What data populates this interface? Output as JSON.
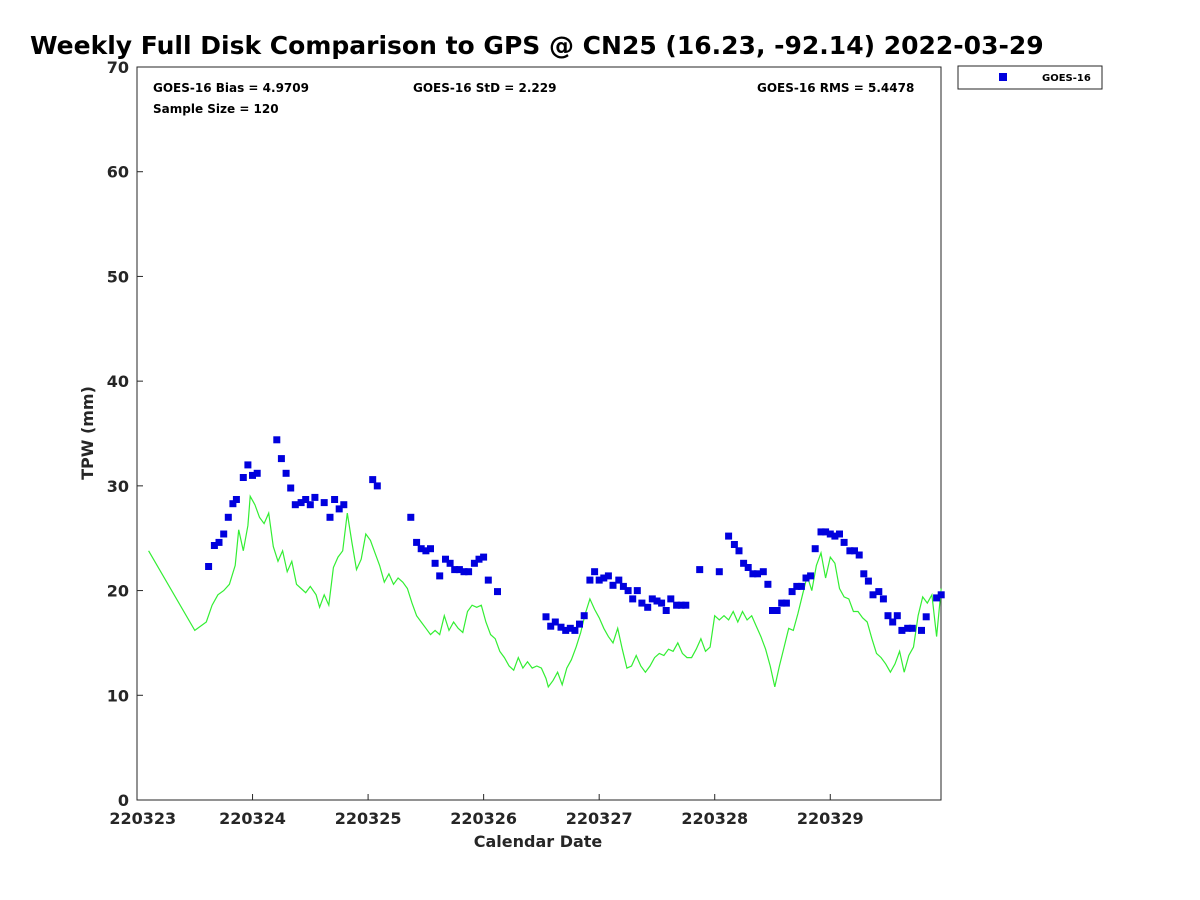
{
  "chart_data": {
    "type": "scatter",
    "title": "Weekly Full Disk Comparison to GPS @ CN25 (16.23, -92.14) 2022-03-29",
    "xlabel": "Calendar Date",
    "ylabel": "TPW (mm)",
    "xlim": [
      "2022-03-23 00:00",
      "2022-03-29 23:00"
    ],
    "ylim": [
      0,
      70
    ],
    "x_ticks": [
      {
        "label": "220323",
        "day": 23
      },
      {
        "label": "220324",
        "day": 24
      },
      {
        "label": "220325",
        "day": 25
      },
      {
        "label": "220326",
        "day": 26
      },
      {
        "label": "220327",
        "day": 27
      },
      {
        "label": "220328",
        "day": 28
      },
      {
        "label": "220329",
        "day": 29
      }
    ],
    "y_ticks": [
      "0",
      "10",
      "20",
      "30",
      "40",
      "50",
      "60",
      "70"
    ],
    "grid": false,
    "legend_position": "outside top-right",
    "stats": {
      "bias": "GOES-16 Bias = 4.9709",
      "std": "GOES-16 StD = 2.229",
      "rms": "GOES-16 RMS = 5.4478",
      "sample": "Sample Size = 120"
    },
    "colors": {
      "goes": "#0000dd",
      "gps": "#33ee33"
    },
    "series": [
      {
        "name": "GOES-16",
        "marker": "square",
        "points": [
          [
            23.62,
            22.3
          ],
          [
            23.67,
            24.3
          ],
          [
            23.71,
            24.6
          ],
          [
            23.75,
            25.4
          ],
          [
            23.79,
            27.0
          ],
          [
            23.83,
            28.3
          ],
          [
            23.86,
            28.7
          ],
          [
            23.92,
            30.8
          ],
          [
            23.96,
            32.0
          ],
          [
            24.0,
            31.0
          ],
          [
            24.04,
            31.2
          ],
          [
            24.21,
            34.4
          ],
          [
            24.25,
            32.6
          ],
          [
            24.29,
            31.2
          ],
          [
            24.33,
            29.8
          ],
          [
            24.37,
            28.2
          ],
          [
            24.42,
            28.4
          ],
          [
            24.46,
            28.7
          ],
          [
            24.5,
            28.2
          ],
          [
            24.54,
            28.9
          ],
          [
            24.62,
            28.4
          ],
          [
            24.67,
            27.0
          ],
          [
            24.71,
            28.7
          ],
          [
            24.75,
            27.8
          ],
          [
            24.79,
            28.2
          ],
          [
            25.04,
            30.6
          ],
          [
            25.08,
            30.0
          ],
          [
            25.37,
            27.0
          ],
          [
            25.42,
            24.6
          ],
          [
            25.46,
            24.0
          ],
          [
            25.5,
            23.8
          ],
          [
            25.54,
            24.0
          ],
          [
            25.58,
            22.6
          ],
          [
            25.62,
            21.4
          ],
          [
            25.67,
            23.0
          ],
          [
            25.71,
            22.6
          ],
          [
            25.75,
            22.0
          ],
          [
            25.79,
            22.0
          ],
          [
            25.83,
            21.8
          ],
          [
            25.87,
            21.8
          ],
          [
            25.92,
            22.6
          ],
          [
            25.96,
            23.0
          ],
          [
            26.0,
            23.2
          ],
          [
            26.04,
            21.0
          ],
          [
            26.12,
            19.9
          ],
          [
            26.54,
            17.5
          ],
          [
            26.58,
            16.6
          ],
          [
            26.62,
            17.0
          ],
          [
            26.67,
            16.5
          ],
          [
            26.71,
            16.2
          ],
          [
            26.75,
            16.4
          ],
          [
            26.79,
            16.2
          ],
          [
            26.83,
            16.8
          ],
          [
            26.87,
            17.6
          ],
          [
            26.92,
            21.0
          ],
          [
            26.96,
            21.8
          ],
          [
            27.0,
            21.0
          ],
          [
            27.04,
            21.2
          ],
          [
            27.08,
            21.4
          ],
          [
            27.12,
            20.5
          ],
          [
            27.17,
            21.0
          ],
          [
            27.21,
            20.4
          ],
          [
            27.25,
            20.0
          ],
          [
            27.29,
            19.2
          ],
          [
            27.33,
            20.0
          ],
          [
            27.37,
            18.8
          ],
          [
            27.42,
            18.4
          ],
          [
            27.46,
            19.2
          ],
          [
            27.5,
            19.0
          ],
          [
            27.54,
            18.8
          ],
          [
            27.58,
            18.1
          ],
          [
            27.62,
            19.2
          ],
          [
            27.67,
            18.6
          ],
          [
            27.71,
            18.6
          ],
          [
            27.75,
            18.6
          ],
          [
            27.87,
            22.0
          ],
          [
            28.04,
            21.8
          ],
          [
            28.12,
            25.2
          ],
          [
            28.17,
            24.4
          ],
          [
            28.21,
            23.8
          ],
          [
            28.25,
            22.6
          ],
          [
            28.29,
            22.2
          ],
          [
            28.33,
            21.6
          ],
          [
            28.37,
            21.6
          ],
          [
            28.42,
            21.8
          ],
          [
            28.46,
            20.6
          ],
          [
            28.5,
            18.1
          ],
          [
            28.54,
            18.1
          ],
          [
            28.58,
            18.8
          ],
          [
            28.62,
            18.8
          ],
          [
            28.67,
            19.9
          ],
          [
            28.71,
            20.4
          ],
          [
            28.75,
            20.4
          ],
          [
            28.79,
            21.2
          ],
          [
            28.83,
            21.4
          ],
          [
            28.87,
            24.0
          ],
          [
            28.92,
            25.6
          ],
          [
            28.96,
            25.6
          ],
          [
            29.0,
            25.4
          ],
          [
            29.04,
            25.2
          ],
          [
            29.08,
            25.4
          ],
          [
            29.12,
            24.6
          ],
          [
            29.17,
            23.8
          ],
          [
            29.21,
            23.8
          ],
          [
            29.25,
            23.4
          ],
          [
            29.29,
            21.6
          ],
          [
            29.33,
            20.9
          ],
          [
            29.37,
            19.6
          ],
          [
            29.42,
            19.9
          ],
          [
            29.46,
            19.2
          ],
          [
            29.5,
            17.6
          ],
          [
            29.54,
            17.0
          ],
          [
            29.58,
            17.6
          ],
          [
            29.62,
            16.2
          ],
          [
            29.67,
            16.4
          ],
          [
            29.71,
            16.4
          ],
          [
            29.79,
            16.2
          ],
          [
            29.83,
            17.5
          ],
          [
            29.92,
            19.3
          ],
          [
            29.96,
            19.6
          ]
        ]
      },
      {
        "name": "GPS",
        "marker": "line",
        "points": [
          [
            23.1,
            23.8
          ],
          [
            23.5,
            16.2
          ],
          [
            23.6,
            17.0
          ],
          [
            23.65,
            18.6
          ],
          [
            23.7,
            19.6
          ],
          [
            23.75,
            20.0
          ],
          [
            23.8,
            20.6
          ],
          [
            23.85,
            22.4
          ],
          [
            23.88,
            25.8
          ],
          [
            23.92,
            23.8
          ],
          [
            23.96,
            26.2
          ],
          [
            23.98,
            29.0
          ],
          [
            24.02,
            28.2
          ],
          [
            24.06,
            27.0
          ],
          [
            24.1,
            26.4
          ],
          [
            24.14,
            27.4
          ],
          [
            24.18,
            24.2
          ],
          [
            24.22,
            22.8
          ],
          [
            24.26,
            23.8
          ],
          [
            24.3,
            21.8
          ],
          [
            24.34,
            22.8
          ],
          [
            24.38,
            20.6
          ],
          [
            24.42,
            20.2
          ],
          [
            24.46,
            19.8
          ],
          [
            24.5,
            20.4
          ],
          [
            24.55,
            19.6
          ],
          [
            24.58,
            18.4
          ],
          [
            24.62,
            19.6
          ],
          [
            24.66,
            18.6
          ],
          [
            24.7,
            22.2
          ],
          [
            24.74,
            23.2
          ],
          [
            24.78,
            23.8
          ],
          [
            24.82,
            27.4
          ],
          [
            24.86,
            24.6
          ],
          [
            24.9,
            22.0
          ],
          [
            24.94,
            23.0
          ],
          [
            24.98,
            25.4
          ],
          [
            25.02,
            24.8
          ],
          [
            25.06,
            23.6
          ],
          [
            25.1,
            22.4
          ],
          [
            25.14,
            20.8
          ],
          [
            25.18,
            21.6
          ],
          [
            25.22,
            20.6
          ],
          [
            25.26,
            21.2
          ],
          [
            25.3,
            20.8
          ],
          [
            25.34,
            20.2
          ],
          [
            25.38,
            18.8
          ],
          [
            25.42,
            17.6
          ],
          [
            25.46,
            17.0
          ],
          [
            25.5,
            16.4
          ],
          [
            25.54,
            15.8
          ],
          [
            25.58,
            16.2
          ],
          [
            25.62,
            15.8
          ],
          [
            25.66,
            17.6
          ],
          [
            25.7,
            16.2
          ],
          [
            25.74,
            17.0
          ],
          [
            25.78,
            16.4
          ],
          [
            25.82,
            16.0
          ],
          [
            25.86,
            18.0
          ],
          [
            25.9,
            18.6
          ],
          [
            25.94,
            18.4
          ],
          [
            25.98,
            18.6
          ],
          [
            26.02,
            17.0
          ],
          [
            26.06,
            15.8
          ],
          [
            26.1,
            15.4
          ],
          [
            26.14,
            14.2
          ],
          [
            26.18,
            13.6
          ],
          [
            26.22,
            12.8
          ],
          [
            26.26,
            12.4
          ],
          [
            26.3,
            13.6
          ],
          [
            26.34,
            12.6
          ],
          [
            26.38,
            13.2
          ],
          [
            26.42,
            12.6
          ],
          [
            26.46,
            12.8
          ],
          [
            26.5,
            12.6
          ],
          [
            26.54,
            11.6
          ],
          [
            26.56,
            10.8
          ],
          [
            26.6,
            11.4
          ],
          [
            26.64,
            12.2
          ],
          [
            26.68,
            11.0
          ],
          [
            26.72,
            12.6
          ],
          [
            26.76,
            13.4
          ],
          [
            26.8,
            14.6
          ],
          [
            26.84,
            16.0
          ],
          [
            26.88,
            17.8
          ],
          [
            26.92,
            19.2
          ],
          [
            26.96,
            18.2
          ],
          [
            27.0,
            17.4
          ],
          [
            27.04,
            16.4
          ],
          [
            27.08,
            15.6
          ],
          [
            27.12,
            15.0
          ],
          [
            27.16,
            16.4
          ],
          [
            27.2,
            14.4
          ],
          [
            27.24,
            12.6
          ],
          [
            27.28,
            12.8
          ],
          [
            27.32,
            13.8
          ],
          [
            27.36,
            12.8
          ],
          [
            27.4,
            12.2
          ],
          [
            27.44,
            12.8
          ],
          [
            27.48,
            13.6
          ],
          [
            27.52,
            14.0
          ],
          [
            27.56,
            13.8
          ],
          [
            27.6,
            14.4
          ],
          [
            27.64,
            14.2
          ],
          [
            27.68,
            15.0
          ],
          [
            27.72,
            14.0
          ],
          [
            27.76,
            13.6
          ],
          [
            27.8,
            13.6
          ],
          [
            27.84,
            14.4
          ],
          [
            27.88,
            15.4
          ],
          [
            27.92,
            14.2
          ],
          [
            27.96,
            14.6
          ],
          [
            28.0,
            17.6
          ],
          [
            28.04,
            17.2
          ],
          [
            28.08,
            17.6
          ],
          [
            28.12,
            17.2
          ],
          [
            28.16,
            18.0
          ],
          [
            28.2,
            17.0
          ],
          [
            28.24,
            18.0
          ],
          [
            28.28,
            17.2
          ],
          [
            28.32,
            17.6
          ],
          [
            28.36,
            16.6
          ],
          [
            28.4,
            15.6
          ],
          [
            28.44,
            14.4
          ],
          [
            28.48,
            12.8
          ],
          [
            28.52,
            10.8
          ],
          [
            28.56,
            12.8
          ],
          [
            28.6,
            14.6
          ],
          [
            28.64,
            16.4
          ],
          [
            28.68,
            16.2
          ],
          [
            28.72,
            17.8
          ],
          [
            28.76,
            19.6
          ],
          [
            28.8,
            21.4
          ],
          [
            28.84,
            20.0
          ],
          [
            28.88,
            22.4
          ],
          [
            28.92,
            23.6
          ],
          [
            28.96,
            21.2
          ],
          [
            29.0,
            23.2
          ],
          [
            29.04,
            22.6
          ],
          [
            29.08,
            20.2
          ],
          [
            29.12,
            19.4
          ],
          [
            29.16,
            19.2
          ],
          [
            29.2,
            18.0
          ],
          [
            29.24,
            18.0
          ],
          [
            29.28,
            17.4
          ],
          [
            29.32,
            17.0
          ],
          [
            29.36,
            15.4
          ],
          [
            29.4,
            14.0
          ],
          [
            29.44,
            13.6
          ],
          [
            29.48,
            13.0
          ],
          [
            29.52,
            12.2
          ],
          [
            29.56,
            13.0
          ],
          [
            29.6,
            14.2
          ],
          [
            29.64,
            12.2
          ],
          [
            29.68,
            13.8
          ],
          [
            29.72,
            14.6
          ],
          [
            29.76,
            17.6
          ],
          [
            29.8,
            19.4
          ],
          [
            29.84,
            18.8
          ],
          [
            29.88,
            19.6
          ],
          [
            29.92,
            15.6
          ],
          [
            29.96,
            20.2
          ]
        ]
      }
    ]
  }
}
